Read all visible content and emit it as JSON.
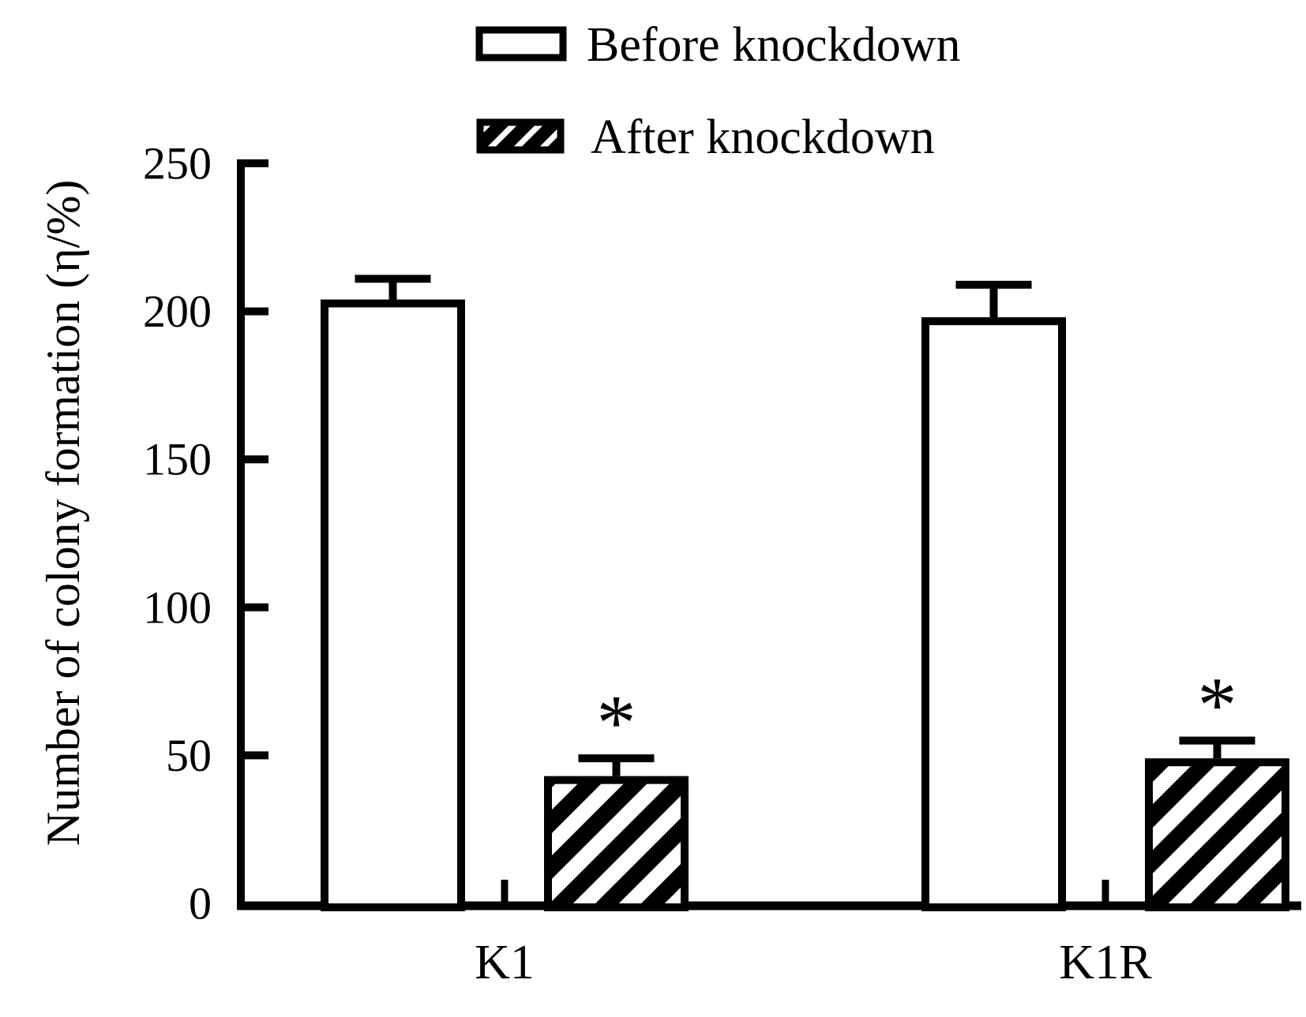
{
  "figure": {
    "background": "#ffffff",
    "ink_color": "#000000"
  },
  "legend": {
    "position": "top",
    "items": [
      {
        "label": "Before knockdown",
        "swatch": "open-bar"
      },
      {
        "label": "After knockdown",
        "swatch": "hatched-bar"
      }
    ]
  },
  "chart_data": {
    "type": "bar",
    "title": "",
    "xlabel": "",
    "ylabel": "Number of colony formation (η/%)",
    "ylim": [
      0,
      250
    ],
    "yticks": [
      0,
      50,
      100,
      150,
      200,
      250
    ],
    "grid": false,
    "legend_position": "top",
    "categories": [
      "K1",
      "K1R"
    ],
    "series": [
      {
        "name": "Before knockdown",
        "fill": "open",
        "values": [
          204,
          198
        ],
        "errors": [
          7,
          11
        ],
        "significance": [
          "",
          ""
        ]
      },
      {
        "name": "After knockdown",
        "fill": "hatch",
        "values": [
          43,
          49
        ],
        "errors": [
          6,
          6
        ],
        "significance": [
          "*",
          "*"
        ]
      }
    ],
    "significance_symbol": "*"
  }
}
